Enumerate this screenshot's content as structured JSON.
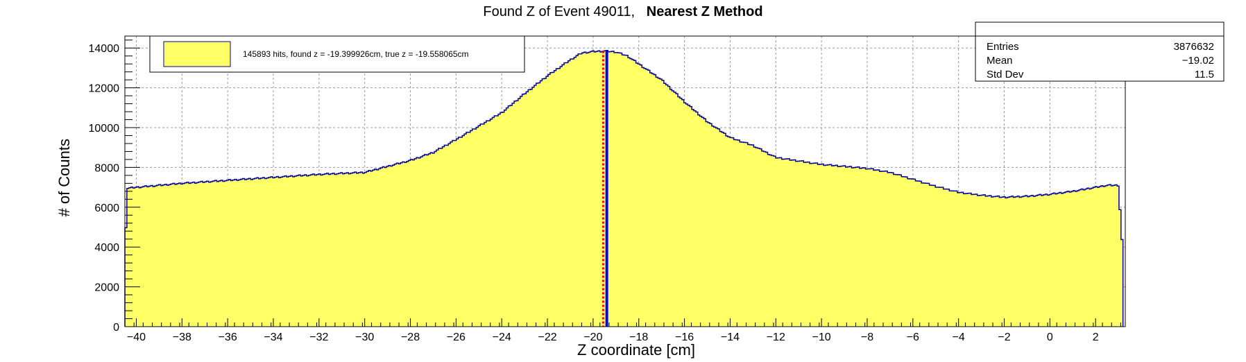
{
  "title": {
    "prefix": "Found Z of Event 49011,",
    "method": "Nearest Z Method"
  },
  "legend": {
    "text": "145893 hits, found z = -19.399926cm, true z = -19.558065cm",
    "fill_color": "#ffff66"
  },
  "stats": {
    "rows": [
      {
        "label": "Entries",
        "value": "3876632"
      },
      {
        "label": "Mean",
        "value": "−19.02"
      },
      {
        "label": "Std Dev",
        "value": "11.5"
      }
    ]
  },
  "colors": {
    "fill": "#ffff66",
    "outline": "#000099",
    "found_line": "#0000ff",
    "true_line": "#ff0000",
    "grid": "#999999"
  },
  "chart_data": {
    "type": "area",
    "title": "Found Z of Event 49011,   Nearest Z Method",
    "xlabel": "Z coordinate [cm]",
    "ylabel": "# of Counts",
    "xlim": [
      -40.5,
      3.3
    ],
    "ylim": [
      0,
      14600
    ],
    "grid": true,
    "x_ticks": [
      -40,
      -38,
      -36,
      -34,
      -32,
      -30,
      -28,
      -26,
      -24,
      -22,
      -20,
      -18,
      -16,
      -14,
      -12,
      -10,
      -8,
      -6,
      -4,
      -2,
      0,
      2
    ],
    "y_ticks": [
      0,
      2000,
      4000,
      6000,
      8000,
      10000,
      12000,
      14000
    ],
    "x_tick_labels": [
      "−40",
      "−38",
      "−36",
      "−34",
      "−32",
      "−30",
      "−28",
      "−26",
      "−24",
      "−22",
      "−20",
      "−18",
      "−16",
      "−14",
      "−12",
      "−10",
      "−8",
      "−6",
      "−4",
      "−2",
      "0",
      "2"
    ],
    "y_tick_labels": [
      "0",
      "2000",
      "4000",
      "6000",
      "8000",
      "10000",
      "12000",
      "14000"
    ],
    "series": [
      {
        "name": "145893 hits, found z = -19.399926cm, true z = -19.558065cm",
        "x": [
          -40.5,
          -40.4,
          -40.0,
          -38.0,
          -36.0,
          -34.0,
          -32.0,
          -30.0,
          -28.0,
          -27.0,
          -26.0,
          -24.0,
          -23.0,
          -22.0,
          -21.0,
          -20.5,
          -20.0,
          -19.5,
          -19.0,
          -18.5,
          -18.0,
          -17.0,
          -16.0,
          -15.0,
          -14.0,
          -13.0,
          -12.0,
          -10.0,
          -8.0,
          -7.0,
          -6.0,
          -5.0,
          -4.0,
          -3.0,
          -2.0,
          -1.0,
          0.0,
          1.0,
          2.0,
          2.5,
          3.0,
          3.2
        ],
        "values": [
          3500,
          6950,
          7000,
          7200,
          7350,
          7500,
          7650,
          7750,
          8350,
          8750,
          9400,
          10750,
          11700,
          12600,
          13400,
          13750,
          13820,
          13850,
          13800,
          13600,
          13200,
          12400,
          11300,
          10300,
          9500,
          9100,
          8500,
          8150,
          7950,
          7750,
          7400,
          7050,
          6750,
          6600,
          6500,
          6550,
          6650,
          6800,
          7000,
          7100,
          7100,
          3600
        ]
      }
    ],
    "vertical_lines": [
      {
        "name": "found z",
        "x": -19.399926,
        "color": "#0000ff",
        "style": "solid"
      },
      {
        "name": "true z",
        "x": -19.558065,
        "color": "#ff0000",
        "style": "dashed"
      }
    ]
  }
}
